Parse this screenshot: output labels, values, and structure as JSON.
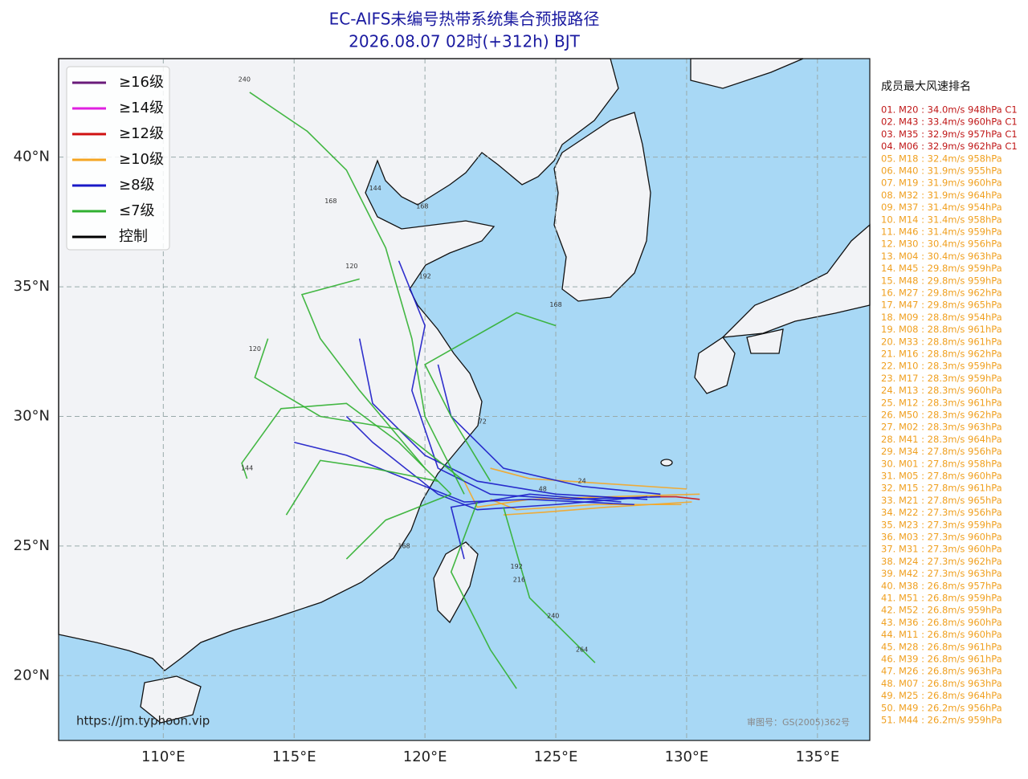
{
  "chart_data": {
    "type": "map",
    "title": [
      "EC-AIFS未编号热带系统集合预报路径",
      "2026.08.07 02时(+312h) BJT"
    ],
    "xlim": [
      106,
      137
    ],
    "ylim": [
      17.5,
      43.8
    ],
    "xticks": [
      {
        "value": 110,
        "label": "110°E"
      },
      {
        "value": 115,
        "label": "115°E"
      },
      {
        "value": 120,
        "label": "120°E"
      },
      {
        "value": 125,
        "label": "125°E"
      },
      {
        "value": 130,
        "label": "130°E"
      },
      {
        "value": 135,
        "label": "135°E"
      }
    ],
    "yticks": [
      {
        "value": 20,
        "label": "20°N"
      },
      {
        "value": 25,
        "label": "25°N"
      },
      {
        "value": 30,
        "label": "30°N"
      },
      {
        "value": 35,
        "label": "35°N"
      },
      {
        "value": 40,
        "label": "40°N"
      }
    ],
    "grid": true,
    "legend": [
      {
        "name": "≥16级",
        "color": "#6a1b7a",
        "tracks": []
      },
      {
        "name": "≥14级",
        "color": "#e020e0",
        "tracks": []
      },
      {
        "name": "≥12级",
        "color": "#d01010",
        "tracks": [
          {
            "lon": [
              130.5,
              129.6,
              128.6
            ],
            "lat": [
              26.8,
              26.9,
              26.9
            ]
          }
        ]
      },
      {
        "name": "≥10级",
        "color": "#f5a623",
        "tracks": [
          {
            "lon": [
              130.5,
              127,
              124,
              122,
              121.5
            ],
            "lat": [
              27,
              26.9,
              26.8,
              26.5,
              27.5
            ]
          },
          {
            "lon": [
              130.2,
              127,
              124.5,
              123
            ],
            "lat": [
              26.7,
              26.5,
              26.3,
              26.2
            ]
          },
          {
            "lon": [
              130,
              127,
              124,
              122.5
            ],
            "lat": [
              27.2,
              27.4,
              27.6,
              28
            ]
          },
          {
            "lon": [
              129.8,
              126.5,
              123.5,
              122.5
            ],
            "lat": [
              26.6,
              26.6,
              26.4,
              26.8
            ]
          }
        ]
      },
      {
        "name": "≥8级",
        "color": "#1a1ac8",
        "tracks": [
          {
            "lon": [
              128.5,
              125,
              122,
              120,
              118,
              117.5
            ],
            "lat": [
              26.8,
              27,
              27.5,
              28.5,
              30.5,
              33
            ]
          },
          {
            "lon": [
              129,
              125.5,
              122.5,
              120.5,
              119.5,
              120,
              119
            ],
            "lat": [
              26.9,
              26.8,
              27,
              28,
              31,
              33.5,
              36
            ]
          },
          {
            "lon": [
              128,
              124,
              121.5,
              119.5,
              117,
              115
            ],
            "lat": [
              26.6,
              26.8,
              26.7,
              27.5,
              28.5,
              29
            ]
          },
          {
            "lon": [
              127.5,
              124,
              121,
              121.5
            ],
            "lat": [
              26.7,
              27,
              26.5,
              24.5
            ]
          },
          {
            "lon": [
              129,
              126,
              123,
              121,
              120.5
            ],
            "lat": [
              27,
              27.3,
              28,
              30,
              32
            ]
          },
          {
            "lon": [
              128.5,
              125,
              122,
              120.5,
              118,
              117
            ],
            "lat": [
              26.9,
              26.6,
              26.4,
              27,
              29,
              30
            ]
          }
        ]
      },
      {
        "name": "≤7级",
        "color": "#30b030",
        "tracks": [
          {
            "lon": [
              121,
              119,
              117,
              114.5,
              113,
              113.2
            ],
            "lat": [
              27,
              29,
              30.5,
              30.3,
              28.2,
              27.6
            ]
          },
          {
            "lon": [
              121.5,
              120,
              119.5,
              118.5,
              117,
              115.5,
              113.3
            ],
            "lat": [
              27,
              30,
              33,
              36.5,
              39.5,
              41,
              42.5
            ]
          },
          {
            "lon": [
              122,
              121,
              122.5,
              123.5
            ],
            "lat": [
              26.7,
              24,
              21,
              19.5
            ]
          },
          {
            "lon": [
              123,
              124,
              126,
              126.5
            ],
            "lat": [
              26.5,
              23,
              21,
              20.5
            ]
          },
          {
            "lon": [
              121.5,
              119,
              116,
              113.5,
              114
            ],
            "lat": [
              27.5,
              29.5,
              30,
              31.5,
              33
            ]
          },
          {
            "lon": [
              122.5,
              121,
              120,
              123.5,
              125
            ],
            "lat": [
              27.5,
              30,
              32,
              34,
              33.5
            ]
          },
          {
            "lon": [
              120.5,
              118,
              116,
              114.7
            ],
            "lat": [
              27.5,
              28,
              28.3,
              26.2
            ]
          },
          {
            "lon": [
              121,
              118.5,
              117
            ],
            "lat": [
              27,
              26,
              24.5
            ]
          },
          {
            "lon": [
              120,
              117.5,
              116,
              115.3,
              117.5
            ],
            "lat": [
              28,
              31,
              33,
              34.7,
              35.3
            ]
          }
        ]
      },
      {
        "name": "控制",
        "color": "#000000",
        "tracks": []
      }
    ],
    "time_labels": [
      {
        "text": "240",
        "lon": 113.1,
        "lat": 43.0
      },
      {
        "text": "168",
        "lon": 116.4,
        "lat": 38.3
      },
      {
        "text": "144",
        "lon": 118.1,
        "lat": 38.8
      },
      {
        "text": "168",
        "lon": 119.9,
        "lat": 38.1
      },
      {
        "text": "120",
        "lon": 117.2,
        "lat": 35.8
      },
      {
        "text": "192",
        "lon": 120.0,
        "lat": 35.4
      },
      {
        "text": "168",
        "lon": 125.0,
        "lat": 34.3
      },
      {
        "text": "120",
        "lon": 113.5,
        "lat": 32.6
      },
      {
        "text": "144",
        "lon": 113.2,
        "lat": 28.0
      },
      {
        "text": "72",
        "lon": 122.2,
        "lat": 29.8
      },
      {
        "text": "48",
        "lon": 124.5,
        "lat": 27.2
      },
      {
        "text": "24",
        "lon": 126.0,
        "lat": 27.5
      },
      {
        "text": "192",
        "lon": 123.5,
        "lat": 24.2
      },
      {
        "text": "216",
        "lon": 123.6,
        "lat": 23.7
      },
      {
        "text": "240",
        "lon": 124.9,
        "lat": 22.3
      },
      {
        "text": "264",
        "lon": 126.0,
        "lat": 21.0
      },
      {
        "text": "168",
        "lon": 119.2,
        "lat": 25.0
      }
    ]
  },
  "ranking": {
    "title": "成员最大风速排名",
    "groups": [
      {
        "color": "#c01818",
        "entries": [
          "01. M20 : 34.0m/s 948hPa C1",
          "02. M43 : 33.4m/s 960hPa C1",
          "03. M35 : 32.9m/s 957hPa C1",
          "04. M06 : 32.9m/s 962hPa C1"
        ]
      },
      {
        "color": "#f0a020",
        "entries": [
          "05. M18 : 32.4m/s 958hPa",
          "06. M40 : 31.9m/s 955hPa",
          "07. M19 : 31.9m/s 960hPa",
          "08. M32 : 31.9m/s 964hPa",
          "09. M37 : 31.4m/s 954hPa",
          "10. M14 : 31.4m/s 958hPa",
          "11. M46 : 31.4m/s 959hPa",
          "12. M30 : 30.4m/s 956hPa",
          "13. M04 : 30.4m/s 963hPa",
          "14. M45 : 29.8m/s 959hPa",
          "15. M48 : 29.8m/s 959hPa",
          "16. M27 : 29.8m/s 962hPa",
          "17. M47 : 29.8m/s 965hPa",
          "18. M09 : 28.8m/s 954hPa",
          "19. M08 : 28.8m/s 961hPa",
          "20. M33 : 28.8m/s 961hPa",
          "21. M16 : 28.8m/s 962hPa",
          "22. M10 : 28.3m/s 959hPa",
          "23. M17 : 28.3m/s 959hPa",
          "24. M13 : 28.3m/s 960hPa",
          "25. M12 : 28.3m/s 961hPa",
          "26. M50 : 28.3m/s 962hPa",
          "27. M02 : 28.3m/s 963hPa",
          "28. M41 : 28.3m/s 964hPa",
          "29. M34 : 27.8m/s 956hPa",
          "30. M01 : 27.8m/s 958hPa",
          "31. M05 : 27.8m/s 960hPa",
          "32. M15 : 27.8m/s 961hPa",
          "33. M21 : 27.8m/s 965hPa",
          "34. M22 : 27.3m/s 956hPa",
          "35. M23 : 27.3m/s 959hPa",
          "36. M03 : 27.3m/s 960hPa",
          "37. M31 : 27.3m/s 960hPa",
          "38. M24 : 27.3m/s 962hPa",
          "39. M42 : 27.3m/s 963hPa",
          "40. M38 : 26.8m/s 957hPa",
          "41. M51 : 26.8m/s 959hPa",
          "42. M52 : 26.8m/s 959hPa",
          "43. M36 : 26.8m/s 960hPa",
          "44. M11 : 26.8m/s 960hPa",
          "45. M28 : 26.8m/s 961hPa",
          "46. M39 : 26.8m/s 961hPa",
          "47. M26 : 26.8m/s 963hPa",
          "48. M07 : 26.8m/s 963hPa",
          "49. M25 : 26.8m/s 964hPa",
          "50. M49 : 26.2m/s 956hPa",
          "51. M44 : 26.2m/s 959hPa"
        ]
      }
    ]
  },
  "footer": {
    "url": "https://jm.typhoon.vip",
    "credit": "审图号：GS(2005)362号"
  }
}
